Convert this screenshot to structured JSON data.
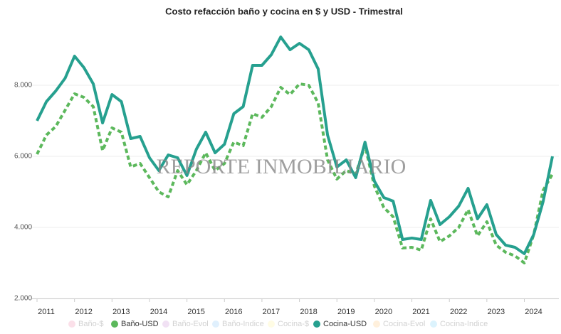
{
  "chart_data": {
    "type": "line",
    "title": "Costo refacción baño y cocina en $ y USD - Trimestral",
    "annotation": "REPORTE INMOBILIARIO",
    "categories": [
      "2011",
      null,
      null,
      null,
      "2012",
      null,
      null,
      null,
      "2013",
      null,
      null,
      null,
      "2014",
      null,
      null,
      null,
      "2015",
      null,
      null,
      null,
      "2016",
      null,
      null,
      null,
      "2017",
      null,
      null,
      null,
      "2018",
      null,
      null,
      null,
      "2019",
      null,
      null,
      null,
      "2020",
      null,
      null,
      null,
      "2021",
      null,
      null,
      null,
      "2022",
      null,
      null,
      null,
      "2023",
      null,
      null,
      null,
      "2024",
      null,
      null,
      null
    ],
    "ylim": [
      2000,
      9800
    ],
    "yticks": [
      {
        "value": 2000,
        "label": "2.000"
      },
      {
        "value": 4000,
        "label": "4.000"
      },
      {
        "value": 6000,
        "label": "6.000"
      },
      {
        "value": 8000,
        "label": "8.000"
      }
    ],
    "grid": true,
    "legend": "bottom",
    "series": [
      {
        "name": "Baño-$",
        "color": "#f8bbd0",
        "visible": false
      },
      {
        "name": "Baño-USD",
        "color": "#5cb85c",
        "dashed": true,
        "visible": true,
        "values": [
          6060,
          6600,
          6840,
          7300,
          7760,
          7660,
          7400,
          6160,
          6800,
          6680,
          5700,
          5800,
          5400,
          5000,
          4860,
          5600,
          5200,
          5600,
          6100,
          5600,
          5800,
          6400,
          6300,
          7200,
          7100,
          7400,
          7940,
          7740,
          8040,
          8000,
          7500,
          5900,
          5360,
          5600,
          5500,
          6300,
          5160,
          4560,
          4300,
          3420,
          3440,
          3360,
          4240,
          3600,
          3760,
          4000,
          4500,
          3760,
          4160,
          3500,
          3300,
          3200,
          3000,
          3800,
          5040,
          5500
        ]
      },
      {
        "name": "Baño-Evol",
        "color": "#e1bee7",
        "visible": false
      },
      {
        "name": "Baño-Indice",
        "color": "#bbdefb",
        "visible": false
      },
      {
        "name": "Cocina-$",
        "color": "#fff9c4",
        "visible": false
      },
      {
        "name": "Cocina-USD",
        "color": "#26a08f",
        "dashed": false,
        "visible": true,
        "values": [
          7000,
          7540,
          7840,
          8200,
          8820,
          8500,
          8040,
          6940,
          7740,
          7540,
          6500,
          6560,
          5960,
          5600,
          6040,
          5960,
          5460,
          6200,
          6680,
          6100,
          6340,
          7200,
          7400,
          8560,
          8560,
          8860,
          9360,
          9000,
          9180,
          9000,
          8460,
          6600,
          5700,
          5900,
          5400,
          6400,
          5300,
          4840,
          4740,
          3660,
          3700,
          3660,
          4760,
          4080,
          4300,
          4600,
          5100,
          4240,
          4640,
          3800,
          3500,
          3440,
          3260,
          3800,
          4720,
          6000
        ]
      },
      {
        "name": "Cocina-Evol",
        "color": "#ffe0b2",
        "visible": false
      },
      {
        "name": "Cocina-Indice",
        "color": "#b3e5fc",
        "visible": false
      }
    ]
  }
}
